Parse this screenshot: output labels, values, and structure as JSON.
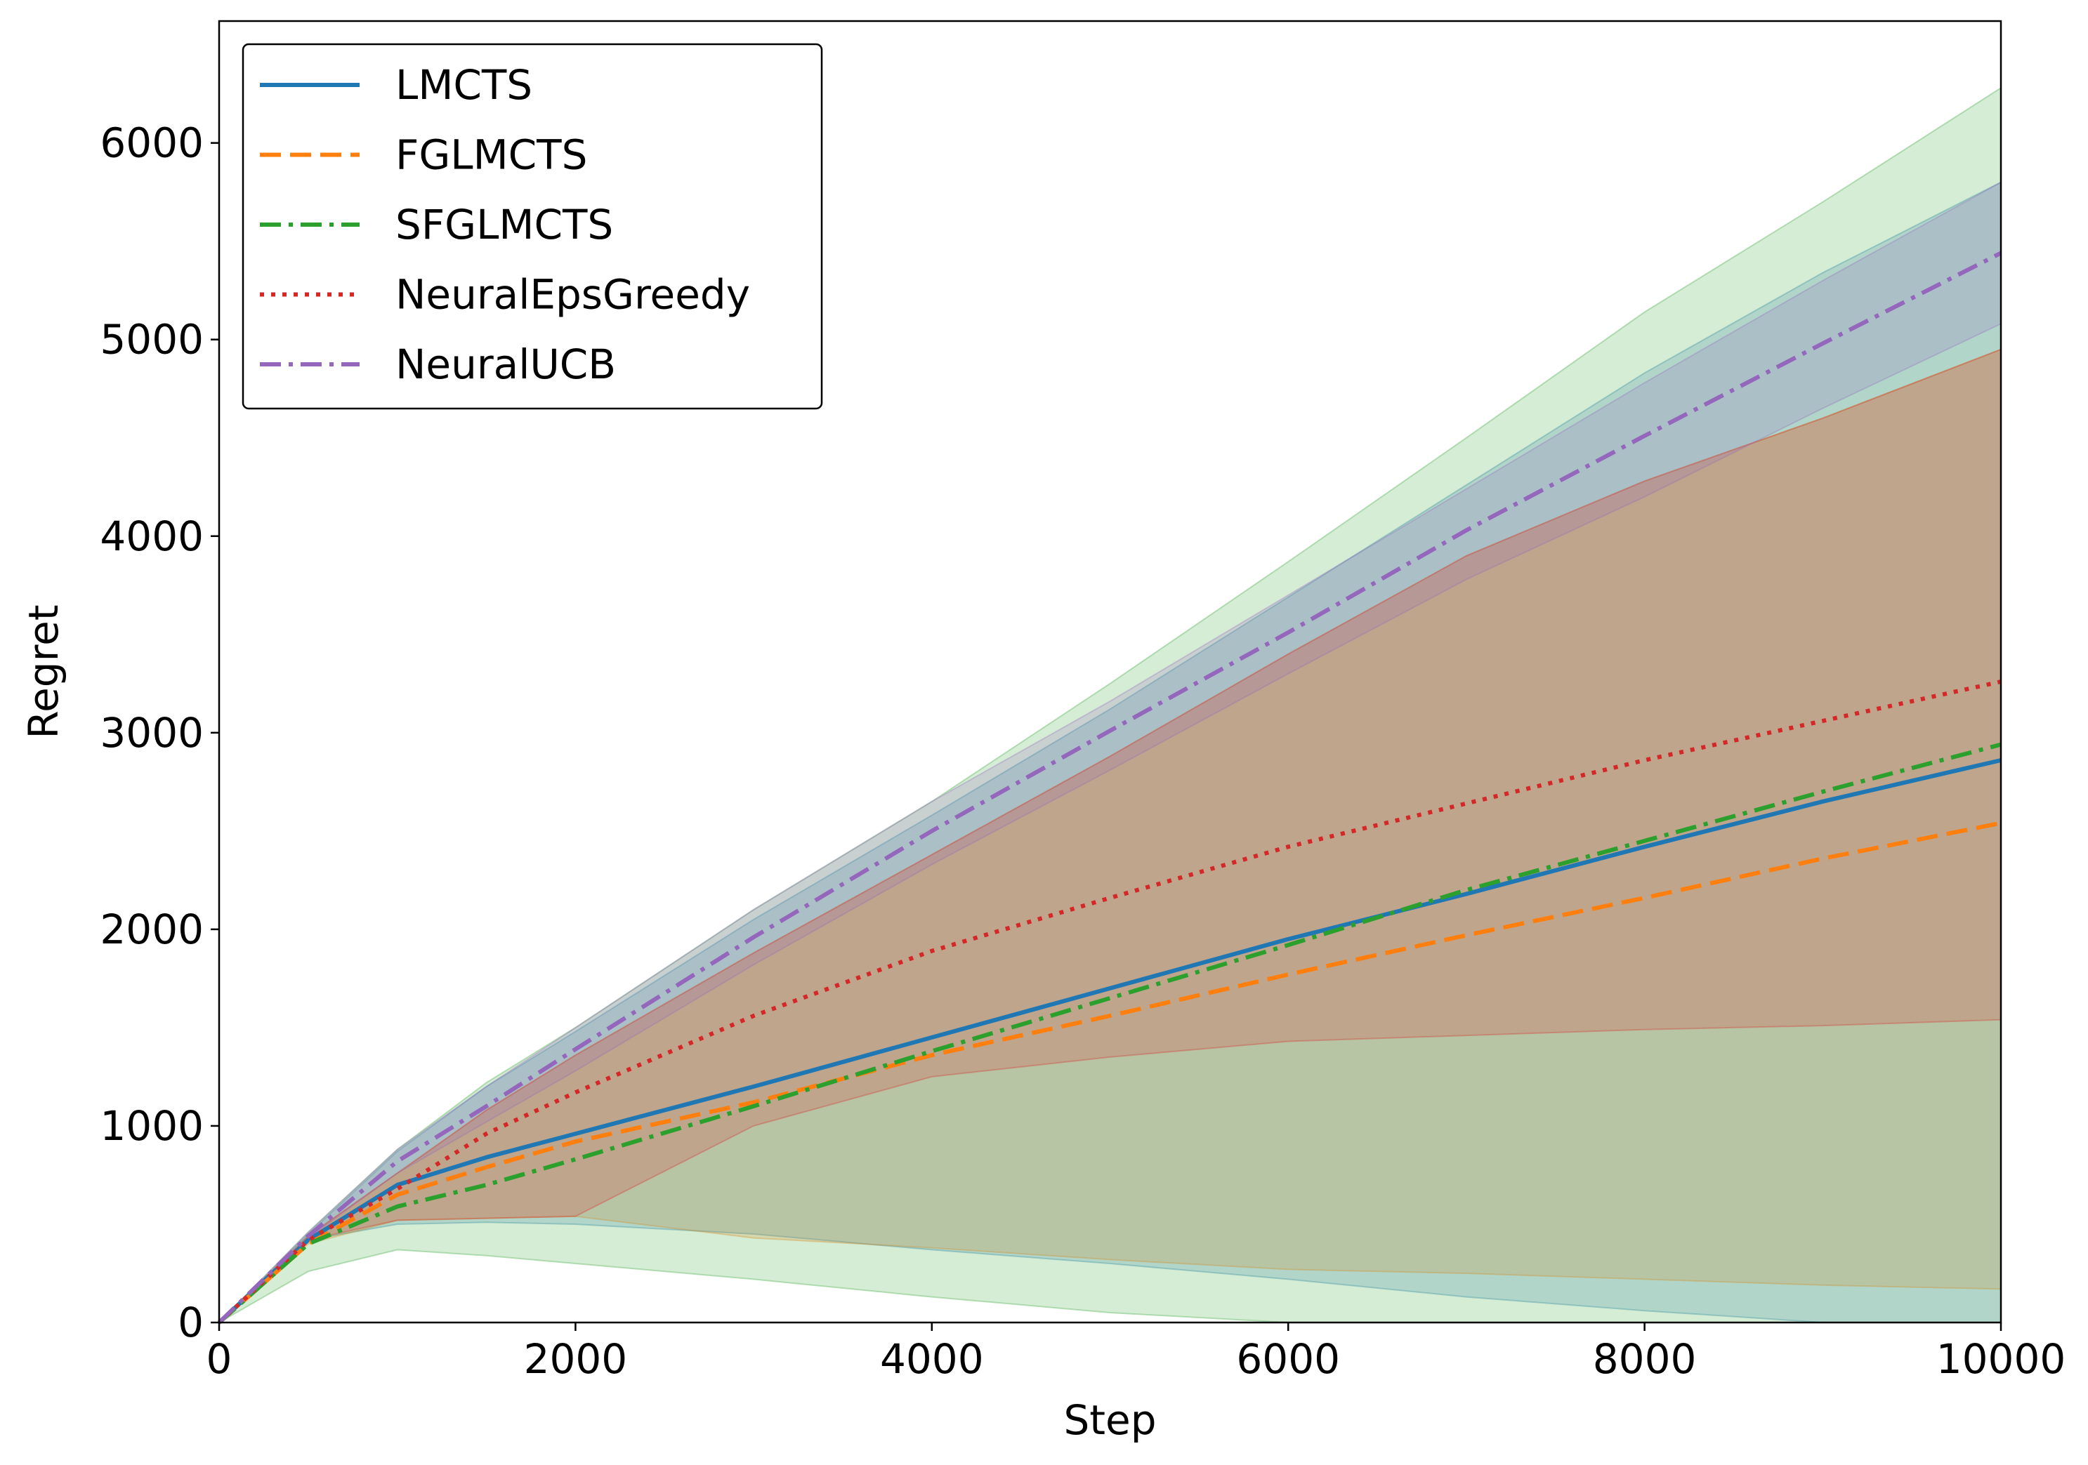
{
  "chart_data": {
    "type": "line",
    "title": "",
    "xlabel": "Step",
    "ylabel": "Regret",
    "xlim": [
      0,
      10000
    ],
    "ylim": [
      0,
      6620
    ],
    "xticks": [
      0,
      2000,
      4000,
      6000,
      8000,
      10000
    ],
    "yticks": [
      0,
      1000,
      2000,
      3000,
      4000,
      5000,
      6000
    ],
    "grid": false,
    "legend_position": "upper-left",
    "series": [
      {
        "name": "LMCTS",
        "color": "#1f77b4",
        "style": "solid",
        "x": [
          0,
          500,
          1000,
          1500,
          2000,
          3000,
          4000,
          5000,
          6000,
          7000,
          8000,
          9000,
          10000
        ],
        "mean": [
          0,
          420,
          700,
          840,
          960,
          1200,
          1450,
          1700,
          1950,
          2180,
          2420,
          2650,
          2860
        ],
        "band_lower": [
          0,
          420,
          500,
          510,
          500,
          450,
          370,
          300,
          220,
          130,
          60,
          0,
          0
        ],
        "band_upper": [
          0,
          450,
          870,
          1200,
          1480,
          2050,
          2580,
          3120,
          3690,
          4260,
          4830,
          5340,
          5800
        ]
      },
      {
        "name": "FGLMCTS",
        "color": "#ff7f0e",
        "style": "dashed",
        "x": [
          0,
          500,
          1000,
          1500,
          2000,
          3000,
          4000,
          5000,
          6000,
          7000,
          8000,
          9000,
          10000
        ],
        "mean": [
          0,
          400,
          650,
          790,
          920,
          1120,
          1360,
          1560,
          1770,
          1970,
          2160,
          2360,
          2540
        ],
        "band_lower": [
          0,
          400,
          520,
          530,
          540,
          430,
          380,
          320,
          270,
          250,
          220,
          190,
          170
        ],
        "band_upper": [
          0,
          440,
          760,
          1080,
          1360,
          1880,
          2380,
          2880,
          3400,
          3900,
          4280,
          4600,
          4950
        ]
      },
      {
        "name": "SFGLMCTS",
        "color": "#2ca02c",
        "style": "dashdot",
        "x": [
          0,
          500,
          1000,
          1500,
          2000,
          3000,
          4000,
          5000,
          6000,
          7000,
          8000,
          9000,
          10000
        ],
        "mean": [
          0,
          400,
          590,
          700,
          830,
          1100,
          1380,
          1650,
          1920,
          2200,
          2450,
          2700,
          2940
        ],
        "band_lower": [
          0,
          260,
          370,
          340,
          300,
          220,
          130,
          50,
          0,
          0,
          0,
          0,
          0
        ],
        "band_upper": [
          0,
          460,
          880,
          1220,
          1500,
          2100,
          2650,
          3250,
          3870,
          4500,
          5140,
          5700,
          6280
        ]
      },
      {
        "name": "NeuralEpsGreedy",
        "color": "#d62728",
        "style": "dotted",
        "x": [
          0,
          500,
          1000,
          1500,
          2000,
          3000,
          4000,
          5000,
          6000,
          7000,
          8000,
          9000,
          10000
        ],
        "mean": [
          0,
          420,
          680,
          960,
          1170,
          1560,
          1890,
          2160,
          2420,
          2640,
          2860,
          3060,
          3260
        ],
        "band_lower": [
          0,
          420,
          520,
          530,
          540,
          1000,
          1250,
          1350,
          1430,
          1460,
          1490,
          1510,
          1540
        ],
        "band_upper": [
          0,
          440,
          760,
          1080,
          1360,
          1880,
          2380,
          2880,
          3400,
          3900,
          4280,
          4600,
          4950
        ]
      },
      {
        "name": "NeuralUCB",
        "color": "#9467bd",
        "style": "dashdot",
        "x": [
          0,
          500,
          1000,
          1500,
          2000,
          3000,
          4000,
          5000,
          6000,
          7000,
          8000,
          9000,
          10000
        ],
        "mean": [
          0,
          440,
          820,
          1100,
          1390,
          1960,
          2500,
          3010,
          3510,
          4030,
          4510,
          4980,
          5440
        ],
        "band_lower": [
          0,
          430,
          760,
          1020,
          1280,
          1820,
          2330,
          2810,
          3300,
          3780,
          4200,
          4650,
          5080
        ],
        "band_upper": [
          0,
          460,
          880,
          1200,
          1500,
          2100,
          2650,
          3160,
          3700,
          4240,
          4780,
          5300,
          5800
        ]
      }
    ]
  }
}
